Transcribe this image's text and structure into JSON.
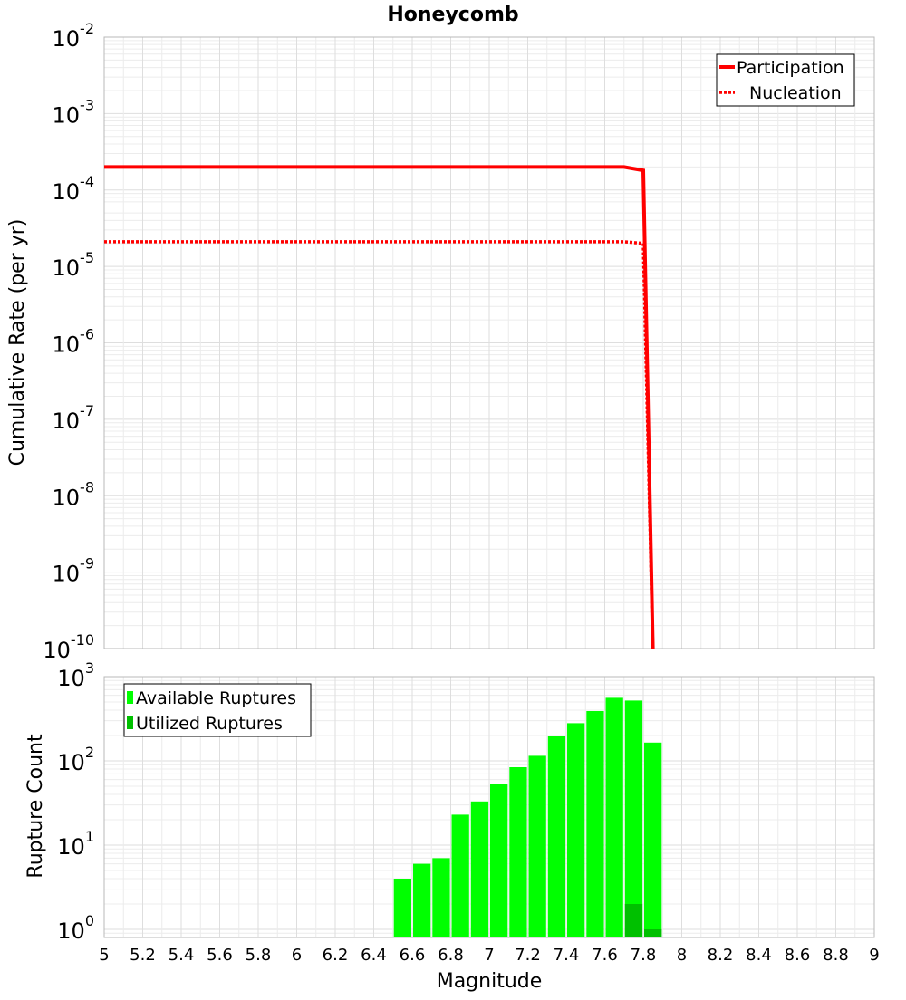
{
  "chart_data": [
    {
      "type": "line",
      "title": "Honeycomb",
      "ylabel": "Cumulative Rate (per yr)",
      "yscale": "log",
      "ylim": [
        1e-10,
        0.01
      ],
      "xlim": [
        5,
        9
      ],
      "y_tick_exponents": [
        "-2",
        "-3",
        "-4",
        "-5",
        "-6",
        "-7",
        "-8",
        "-9",
        "-10"
      ],
      "y_tick_base": "10",
      "grid": true,
      "legend_position": "top-right",
      "series": [
        {
          "name": "Participation",
          "style": "solid",
          "color": "#ff0000",
          "x": [
            5.0,
            7.7,
            7.8,
            7.85
          ],
          "y": [
            0.0002,
            0.0002,
            0.00018,
            1e-10
          ]
        },
        {
          "name": "Nucleation",
          "style": "dotted",
          "color": "#ff0000",
          "x": [
            5.0,
            7.7,
            7.8,
            7.85
          ],
          "y": [
            2.1e-05,
            2.1e-05,
            2e-05,
            1e-10
          ]
        }
      ]
    },
    {
      "type": "bar",
      "xlabel": "Magnitude",
      "ylabel": "Rupture Count",
      "yscale": "log",
      "ylim": [
        0.8,
        1000
      ],
      "xlim": [
        5,
        9
      ],
      "x_ticks": [
        "5",
        "5.2",
        "5.4",
        "5.6",
        "5.8",
        "6",
        "6.2",
        "6.4",
        "6.6",
        "6.8",
        "7",
        "7.2",
        "7.4",
        "7.6",
        "7.8",
        "8",
        "8.2",
        "8.4",
        "8.6",
        "8.8",
        "9"
      ],
      "y_tick_exponents": [
        "3",
        "2",
        "1",
        "0"
      ],
      "y_tick_base": "10",
      "grid": true,
      "legend_position": "top-left",
      "bin_width": 0.1,
      "categories": [
        6.55,
        6.65,
        6.75,
        6.85,
        6.95,
        7.05,
        7.15,
        7.25,
        7.35,
        7.45,
        7.55,
        7.65,
        7.75,
        7.85
      ],
      "series": [
        {
          "name": "Available Ruptures",
          "color": "#00ff00",
          "values": [
            4,
            6,
            7,
            23,
            33,
            53,
            84,
            115,
            195,
            280,
            390,
            560,
            520,
            165
          ]
        },
        {
          "name": "Utilized Ruptures",
          "color": "#00c000",
          "values": [
            0,
            0,
            0,
            0,
            0,
            0,
            0,
            0,
            0,
            0,
            0,
            0,
            2,
            1
          ]
        }
      ]
    }
  ]
}
